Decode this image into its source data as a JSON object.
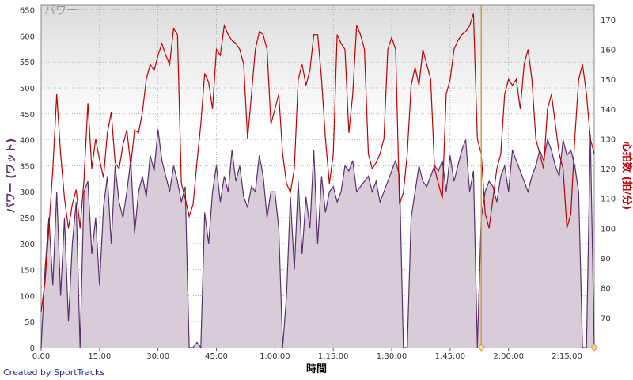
{
  "colors": {
    "power": "#5b2f6e",
    "power_fill": "#d8ccd9",
    "heart_rate": "#c00000",
    "cursor": "#c8a040",
    "grid": "#9a9a9a",
    "background_top": "#dcdcdc",
    "background_bottom": "#ffffff"
  },
  "credit": "Created by SportTracks",
  "chart_data": {
    "type": "line",
    "title": "パワー",
    "xlabel": "時間",
    "ylabel_left": "パワー (ワット)",
    "ylabel_right": "心拍数 (拍/分)",
    "grid": true,
    "xlim_minutes": [
      0,
      142
    ],
    "ylim_left": [
      0,
      660
    ],
    "ylim_right": [
      60,
      175
    ],
    "x_ticks": [
      {
        "value": 0,
        "label": "0:00"
      },
      {
        "value": 15,
        "label": "15:00"
      },
      {
        "value": 30,
        "label": "30:00"
      },
      {
        "value": 45,
        "label": "45:00"
      },
      {
        "value": 60,
        "label": "1:00:00"
      },
      {
        "value": 75,
        "label": "1:15:00"
      },
      {
        "value": 90,
        "label": "1:30:00"
      },
      {
        "value": 105,
        "label": "1:45:00"
      },
      {
        "value": 120,
        "label": "2:00:00"
      },
      {
        "value": 135,
        "label": "2:15:00"
      }
    ],
    "y_left_ticks": [
      0,
      50,
      100,
      150,
      200,
      250,
      300,
      350,
      400,
      450,
      500,
      550,
      600,
      650
    ],
    "y_right_ticks": [
      70,
      80,
      90,
      100,
      110,
      120,
      130,
      140,
      150,
      160,
      170
    ],
    "cursor_x_minutes": 113,
    "series": [
      {
        "name": "パワー",
        "axis": "left",
        "x": [
          0,
          1,
          2,
          3,
          4,
          5,
          6,
          7,
          8,
          9,
          10,
          11,
          12,
          13,
          14,
          15,
          16,
          17,
          18,
          19,
          20,
          21,
          22,
          23,
          24,
          25,
          26,
          27,
          28,
          29,
          30,
          31,
          32,
          33,
          34,
          35,
          36,
          37,
          38,
          39,
          40,
          41,
          42,
          43,
          44,
          45,
          46,
          47,
          48,
          49,
          50,
          51,
          52,
          53,
          54,
          55,
          56,
          57,
          58,
          59,
          60,
          61,
          62,
          63,
          64,
          65,
          66,
          67,
          68,
          69,
          70,
          71,
          72,
          73,
          74,
          75,
          76,
          77,
          78,
          79,
          80,
          81,
          82,
          83,
          84,
          85,
          86,
          87,
          88,
          89,
          90,
          91,
          92,
          93,
          94,
          95,
          96,
          97,
          98,
          99,
          100,
          101,
          102,
          103,
          104,
          105,
          106,
          107,
          108,
          109,
          110,
          111,
          112,
          113,
          114,
          115,
          116,
          117,
          118,
          119,
          120,
          121,
          122,
          123,
          124,
          125,
          126,
          127,
          128,
          129,
          130,
          131,
          132,
          133,
          134,
          135,
          136,
          137,
          138,
          139,
          140,
          141,
          142
        ],
        "values": [
          0,
          150,
          250,
          120,
          300,
          100,
          250,
          50,
          200,
          280,
          0,
          300,
          320,
          180,
          250,
          120,
          270,
          330,
          200,
          350,
          280,
          250,
          300,
          360,
          220,
          300,
          330,
          290,
          370,
          340,
          420,
          360,
          330,
          300,
          350,
          320,
          280,
          310,
          0,
          0,
          10,
          0,
          260,
          200,
          300,
          350,
          280,
          330,
          300,
          380,
          320,
          350,
          290,
          270,
          310,
          300,
          370,
          330,
          250,
          300,
          300,
          230,
          0,
          100,
          290,
          150,
          320,
          180,
          290,
          230,
          380,
          200,
          330,
          260,
          300,
          310,
          280,
          300,
          350,
          340,
          360,
          300,
          310,
          320,
          330,
          300,
          320,
          280,
          300,
          320,
          340,
          360,
          330,
          0,
          0,
          250,
          300,
          350,
          320,
          310,
          330,
          350,
          340,
          360,
          300,
          370,
          320,
          350,
          380,
          400,
          300,
          340,
          0,
          250,
          300,
          320,
          310,
          280,
          330,
          350,
          300,
          380,
          360,
          340,
          320,
          300,
          330,
          350,
          380,
          360,
          400,
          380,
          350,
          330,
          400,
          370,
          380,
          350,
          300,
          0,
          0,
          410,
          0
        ]
      },
      {
        "name": "心拍数",
        "axis": "right",
        "x": [
          0,
          1,
          2,
          3,
          4,
          5,
          6,
          7,
          8,
          9,
          10,
          11,
          12,
          13,
          14,
          15,
          16,
          17,
          18,
          19,
          20,
          21,
          22,
          23,
          24,
          25,
          26,
          27,
          28,
          29,
          30,
          31,
          32,
          33,
          34,
          35,
          36,
          37,
          38,
          39,
          40,
          41,
          42,
          43,
          44,
          45,
          46,
          47,
          48,
          49,
          50,
          51,
          52,
          53,
          54,
          55,
          56,
          57,
          58,
          59,
          60,
          61,
          62,
          63,
          64,
          65,
          66,
          67,
          68,
          69,
          70,
          71,
          72,
          73,
          74,
          75,
          76,
          77,
          78,
          79,
          80,
          81,
          82,
          83,
          84,
          85,
          86,
          87,
          88,
          89,
          90,
          91,
          92,
          93,
          94,
          95,
          96,
          97,
          98,
          99,
          100,
          101,
          102,
          103,
          104,
          105,
          106,
          107,
          108,
          109,
          110,
          111,
          112,
          113,
          114,
          115,
          116,
          117,
          118,
          119,
          120,
          121,
          122,
          123,
          124,
          125,
          126,
          127,
          128,
          129,
          130,
          131,
          132,
          133,
          134,
          135,
          136,
          137,
          138,
          139,
          140,
          141,
          142
        ],
        "values": [
          72,
          82,
          100,
          120,
          145,
          125,
          110,
          100,
          108,
          113,
          100,
          116,
          142,
          120,
          130,
          123,
          117,
          132,
          139,
          122,
          120,
          128,
          133,
          121,
          133,
          132,
          139,
          150,
          155,
          153,
          158,
          162,
          158,
          155,
          167,
          165,
          115,
          110,
          104,
          108,
          122,
          135,
          152,
          149,
          140,
          160,
          158,
          168,
          165,
          163,
          162,
          160,
          155,
          130,
          145,
          160,
          166,
          165,
          160,
          135,
          140,
          145,
          125,
          115,
          112,
          120,
          150,
          155,
          148,
          153,
          165,
          165,
          150,
          130,
          115,
          125,
          165,
          162,
          160,
          132,
          145,
          168,
          165,
          160,
          125,
          120,
          122,
          125,
          130,
          160,
          164,
          160,
          108,
          112,
          125,
          148,
          154,
          148,
          160,
          155,
          150,
          120,
          115,
          110,
          145,
          150,
          160,
          163,
          165,
          166,
          168,
          172,
          130,
          125,
          105,
          100,
          110,
          120,
          125,
          145,
          150,
          148,
          150,
          140,
          155,
          160,
          150,
          130,
          125,
          120,
          140,
          145,
          135,
          125,
          120,
          100,
          105,
          130,
          150,
          155,
          145,
          130,
          125
        ]
      }
    ]
  }
}
